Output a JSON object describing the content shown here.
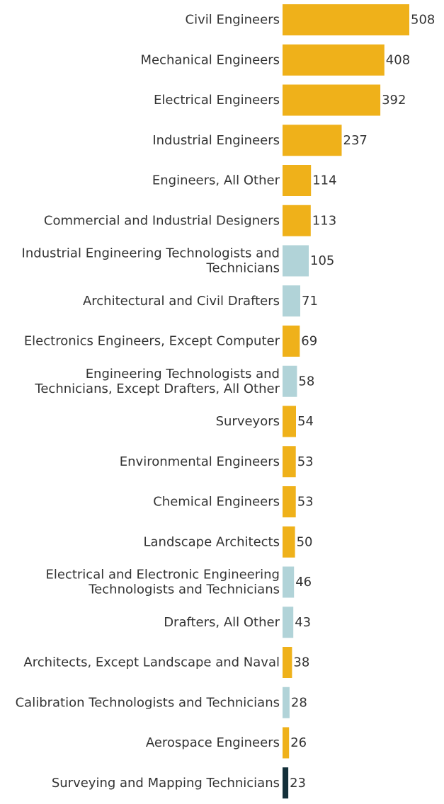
{
  "chart_data": {
    "type": "bar",
    "orientation": "horizontal",
    "title": "",
    "xlabel": "",
    "ylabel": "",
    "xlim": [
      0,
      508
    ],
    "grid": false,
    "categories": [
      [
        "Civil Engineers"
      ],
      [
        "Mechanical Engineers"
      ],
      [
        "Electrical Engineers"
      ],
      [
        "Industrial Engineers"
      ],
      [
        "Engineers, All Other"
      ],
      [
        "Commercial and Industrial Designers"
      ],
      [
        "Industrial Engineering Technologists and",
        "Technicians"
      ],
      [
        "Architectural and Civil Drafters"
      ],
      [
        "Electronics Engineers, Except Computer"
      ],
      [
        "Engineering Technologists and",
        "Technicians, Except Drafters, All Other"
      ],
      [
        "Surveyors"
      ],
      [
        "Environmental Engineers"
      ],
      [
        "Chemical Engineers"
      ],
      [
        "Landscape Architects"
      ],
      [
        "Electrical and Electronic Engineering",
        "Technologists and Technicians"
      ],
      [
        "Drafters, All Other"
      ],
      [
        "Architects, Except Landscape and Naval"
      ],
      [
        "Calibration Technologists and Technicians"
      ],
      [
        "Aerospace Engineers"
      ],
      [
        "Surveying and Mapping Technicians"
      ]
    ],
    "values": [
      508,
      408,
      392,
      237,
      114,
      113,
      105,
      71,
      69,
      58,
      54,
      53,
      53,
      50,
      46,
      43,
      38,
      28,
      26,
      23
    ],
    "value_labels": [
      "508",
      "408",
      "392",
      "237",
      "114",
      "113",
      "105",
      "71",
      "69",
      "58",
      "54",
      "53",
      "53",
      "50",
      "46",
      "43",
      "38",
      "28",
      "26",
      "23"
    ],
    "groups": [
      "engineer",
      "engineer",
      "engineer",
      "engineer",
      "engineer",
      "engineer",
      "technician",
      "technician",
      "engineer",
      "technician",
      "engineer",
      "engineer",
      "engineer",
      "engineer",
      "technician",
      "technician",
      "engineer",
      "technician",
      "engineer",
      "mapping"
    ],
    "colors": {
      "engineer": "#EFB11A",
      "technician": "#B1D3D8",
      "mapping": "#14303A"
    }
  }
}
